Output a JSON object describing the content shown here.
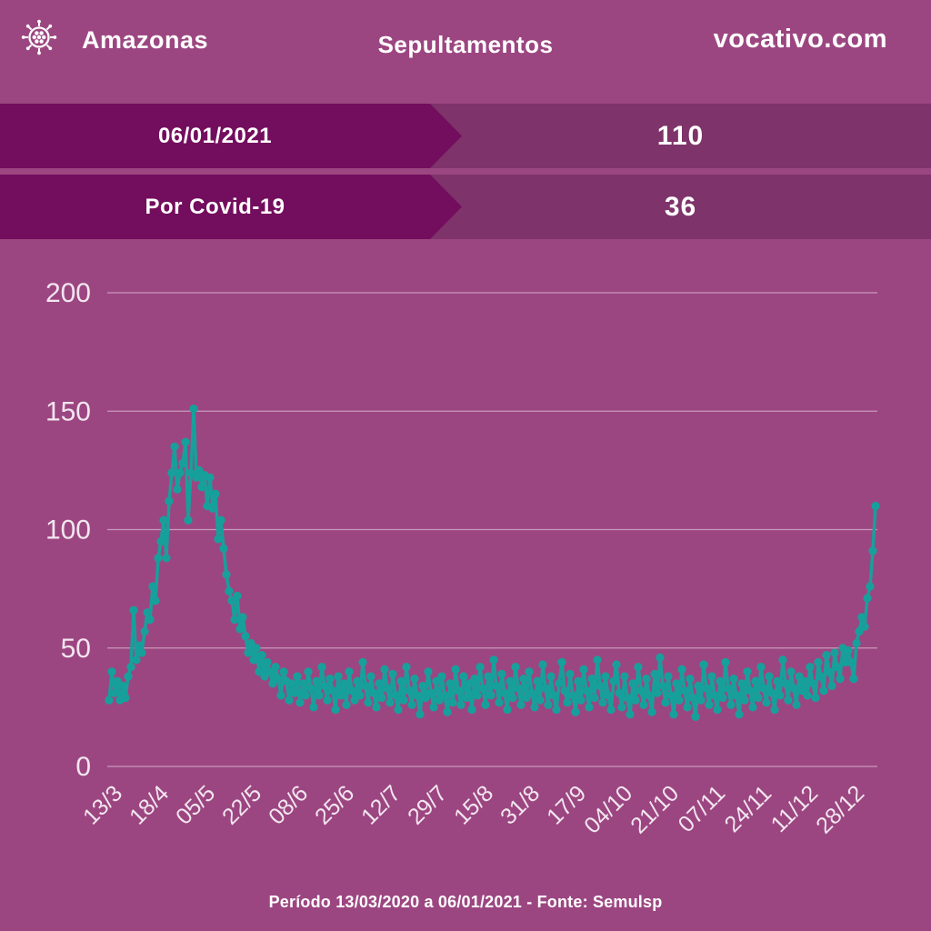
{
  "header": {
    "region": "Amazonas",
    "title": "Sepultamentos",
    "site": "vocativo.com",
    "icon": "virus-icon"
  },
  "banners": [
    {
      "label": "06/01/2021",
      "value": "110"
    },
    {
      "label": "Por Covid-19",
      "value": "36"
    }
  ],
  "footer": "Período 13/03/2020 a 06/01/2021 - Fonte: Semulsp",
  "colors": {
    "background": "#9c4681",
    "banner_arrow": "#730d5d",
    "banner_row": "#7e336a",
    "line": "#17a09b",
    "grid": "rgba(255,255,255,0.45)",
    "axis_text": "#f2e6ef"
  },
  "chart_data": {
    "type": "line",
    "title": "Sepultamentos",
    "xlabel": "",
    "ylabel": "",
    "ylim": [
      0,
      200
    ],
    "y_ticks": [
      0,
      50,
      100,
      150,
      200
    ],
    "grid": "horizontal",
    "legend": "none",
    "x_tick_labels": [
      "13/3",
      "18/4",
      "05/5",
      "22/5",
      "08/6",
      "25/6",
      "12/7",
      "29/7",
      "15/8",
      "31/8",
      "17/9",
      "04/10",
      "21/10",
      "07/11",
      "24/11",
      "11/12",
      "28/12"
    ],
    "x_tick_every": 17,
    "values": [
      28,
      40,
      31,
      36,
      28,
      34,
      29,
      38,
      42,
      66,
      45,
      51,
      48,
      57,
      65,
      62,
      76,
      70,
      88,
      95,
      104,
      88,
      112,
      124,
      135,
      117,
      124,
      128,
      137,
      104,
      124,
      151,
      122,
      125,
      118,
      123,
      110,
      122,
      109,
      115,
      96,
      104,
      92,
      81,
      74,
      70,
      62,
      72,
      58,
      63,
      55,
      48,
      52,
      45,
      50,
      40,
      47,
      38,
      44,
      40,
      35,
      42,
      37,
      30,
      40,
      36,
      28,
      35,
      31,
      38,
      27,
      35,
      30,
      40,
      33,
      25,
      36,
      30,
      42,
      34,
      28,
      37,
      32,
      24,
      38,
      30,
      35,
      26,
      40,
      32,
      28,
      36,
      30,
      44,
      34,
      27,
      38,
      31,
      25,
      35,
      29,
      41,
      33,
      27,
      39,
      30,
      24,
      36,
      28,
      42,
      32,
      26,
      37,
      30,
      22,
      34,
      29,
      40,
      31,
      25,
      36,
      28,
      38,
      30,
      23,
      35,
      27,
      41,
      32,
      26,
      38,
      29,
      35,
      24,
      37,
      30,
      42,
      33,
      26,
      38,
      30,
      45,
      34,
      27,
      39,
      31,
      24,
      36,
      29,
      42,
      33,
      26,
      37,
      29,
      40,
      31,
      25,
      36,
      28,
      43,
      33,
      26,
      38,
      30,
      24,
      35,
      44,
      32,
      27,
      39,
      30,
      23,
      36,
      28,
      41,
      32,
      25,
      37,
      29,
      45,
      34,
      27,
      38,
      30,
      24,
      36,
      43,
      31,
      25,
      38,
      29,
      22,
      35,
      28,
      42,
      32,
      26,
      37,
      30,
      23,
      39,
      31,
      46,
      34,
      27,
      38,
      30,
      22,
      35,
      28,
      41,
      32,
      25,
      37,
      29,
      21,
      34,
      28,
      43,
      33,
      26,
      38,
      30,
      24,
      36,
      29,
      44,
      33,
      26,
      37,
      30,
      22,
      35,
      28,
      40,
      32,
      25,
      36,
      29,
      42,
      33,
      27,
      38,
      31,
      24,
      36,
      30,
      45,
      35,
      28,
      40,
      33,
      26,
      38,
      32,
      36,
      30,
      42,
      35,
      29,
      44,
      38,
      32,
      47,
      40,
      34,
      48,
      42,
      37,
      50,
      44,
      49,
      44,
      37,
      52,
      57,
      63,
      59,
      71,
      76,
      91,
      110
    ]
  }
}
